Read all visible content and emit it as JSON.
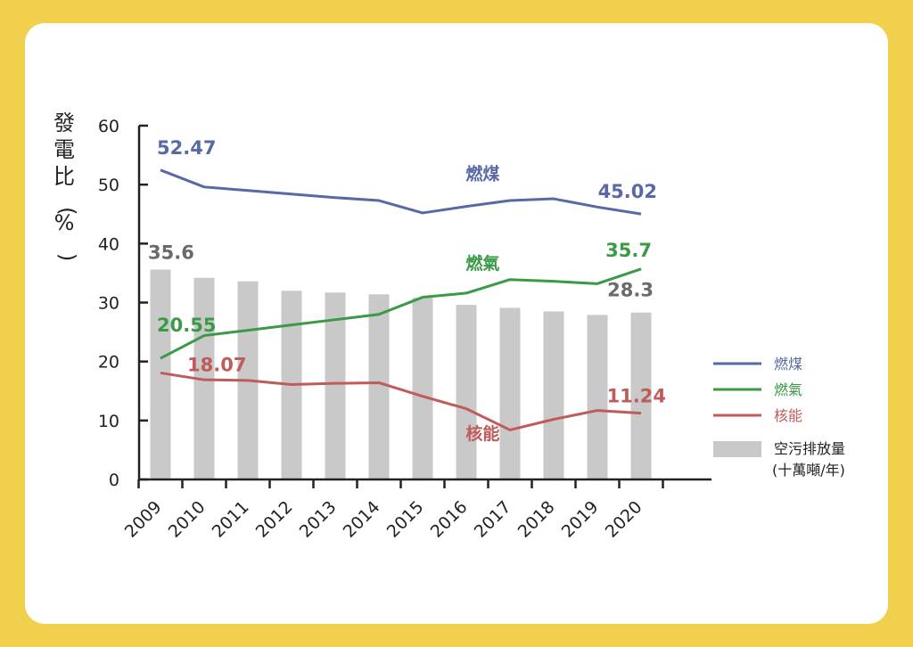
{
  "chart_data": {
    "type": "bar+line",
    "categories": [
      "2009",
      "2010",
      "2011",
      "2012",
      "2013",
      "2014",
      "2015",
      "2016",
      "2017",
      "2018",
      "2019",
      "2020"
    ],
    "ylabel": "發電比(%)",
    "ylim": [
      0,
      60
    ],
    "yticks": [
      "0",
      "10",
      "20",
      "30",
      "40",
      "50",
      "60"
    ],
    "grid": false,
    "legend_position": "right",
    "bars": {
      "name": "空污排放量",
      "name_unit": "(十萬噸/年)",
      "color": "#c9c9c9",
      "values": [
        35.6,
        34.2,
        33.6,
        32.0,
        31.7,
        31.4,
        30.8,
        29.6,
        29.1,
        28.5,
        27.9,
        28.3
      ]
    },
    "series": [
      {
        "name": "燃煤",
        "color": "#5869a6",
        "values": [
          52.47,
          49.6,
          49.0,
          48.4,
          47.8,
          47.3,
          45.2,
          46.3,
          47.3,
          47.6,
          46.2,
          45.02
        ]
      },
      {
        "name": "燃氣",
        "color": "#3a9a45",
        "values": [
          20.55,
          24.4,
          25.3,
          26.2,
          27.1,
          28.0,
          30.9,
          31.6,
          33.9,
          33.6,
          33.2,
          35.7
        ]
      },
      {
        "name": "核能",
        "color": "#c05b5b",
        "values": [
          18.07,
          16.9,
          16.8,
          16.1,
          16.3,
          16.4,
          14.1,
          12.0,
          8.4,
          10.2,
          11.7,
          11.24
        ]
      }
    ],
    "annotations": [
      {
        "text": "52.47",
        "series": 0,
        "index": 0
      },
      {
        "text": "45.02",
        "series": 0,
        "index": 11
      },
      {
        "text": "20.55",
        "series": 1,
        "index": 0
      },
      {
        "text": "35.7",
        "series": 1,
        "index": 11
      },
      {
        "text": "18.07",
        "series": 2,
        "index": 0
      },
      {
        "text": "11.24",
        "series": 2,
        "index": 11
      },
      {
        "text": "35.6",
        "bar": true,
        "index": 0
      },
      {
        "text": "28.3",
        "bar": true,
        "index": 11
      }
    ],
    "inline_labels": [
      "燃煤",
      "燃氣",
      "核能"
    ]
  }
}
